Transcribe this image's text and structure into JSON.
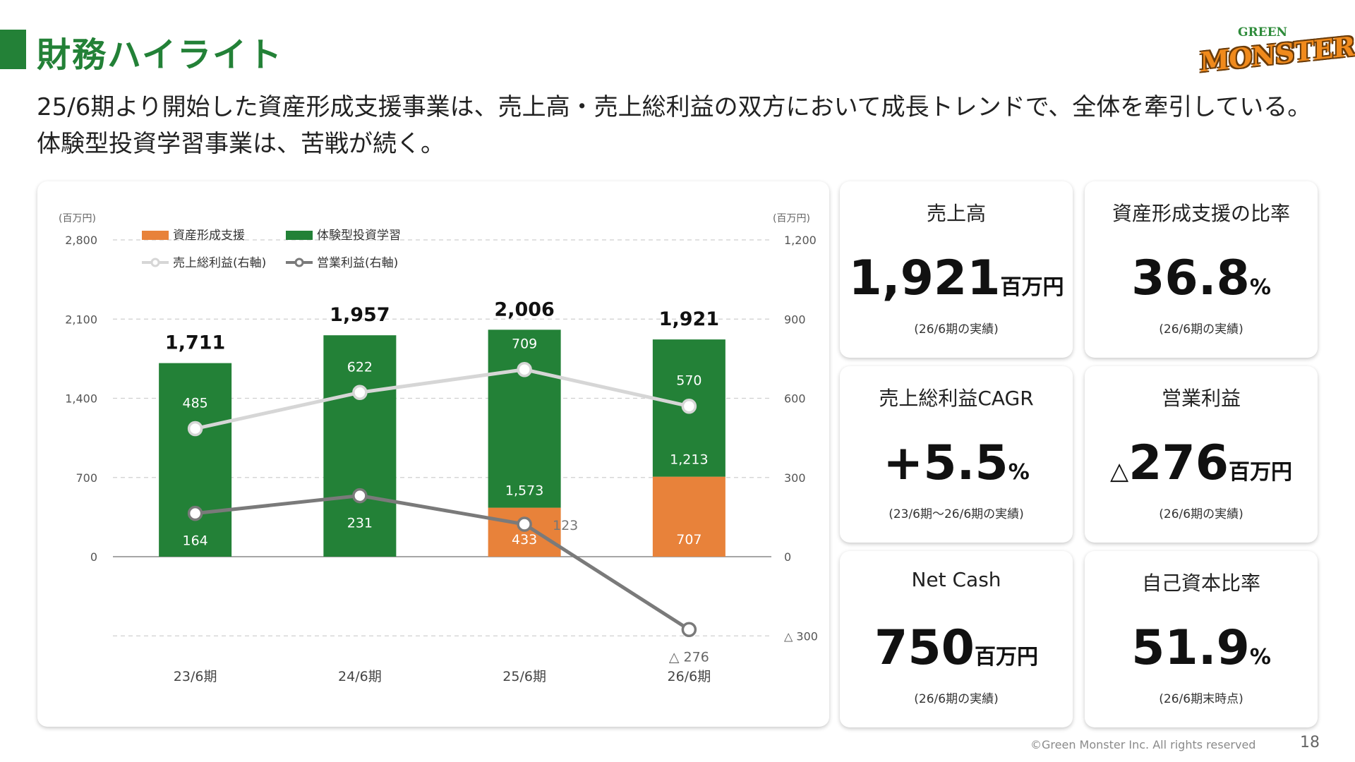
{
  "header": {
    "title": "財務ハイライト",
    "lead": "25/6期より開始した資産形成支援事業は、売上高・売上総利益の双方において成長トレンドで、全体を牽引している。体験型投資学習事業は、苦戦が続く。",
    "logo_small": "GREEN",
    "logo_main": "MONSTER"
  },
  "kpis": [
    {
      "label": "売上高",
      "prefix": "",
      "value": "1,921",
      "unit": "百万円",
      "note": "(26/6期の実績)"
    },
    {
      "label": "資産形成支援の比率",
      "prefix": "",
      "value": "36.8",
      "unit": "%",
      "note": "(26/6期の実績)"
    },
    {
      "label": "売上総利益CAGR",
      "prefix": "",
      "value": "+5.5",
      "unit": "%",
      "note": "(23/6期～26/6期の実績)"
    },
    {
      "label": "営業利益",
      "prefix": "△",
      "value": "276",
      "unit": "百万円",
      "note": "(26/6期の実績)"
    },
    {
      "label": "Net Cash",
      "prefix": "",
      "value": "750",
      "unit": "百万円",
      "note": "(26/6期の実績)"
    },
    {
      "label": "自己資本比率",
      "prefix": "",
      "value": "51.9",
      "unit": "%",
      "note": "(26/6期末時点)"
    }
  ],
  "chart_data": {
    "type": "bar",
    "stacked": true,
    "categories": [
      "23/6期",
      "24/6期",
      "25/6期",
      "26/6期"
    ],
    "left_axis": {
      "unit": "(百万円)",
      "ylim": [
        0,
        2800
      ],
      "ticks": [
        0,
        700,
        1400,
        2100,
        2800
      ],
      "tick_labels": [
        "0",
        "700",
        "1,400",
        "2,100",
        "2,800"
      ]
    },
    "right_axis": {
      "unit": "(百万円)",
      "ylim": [
        -300,
        1200
      ],
      "ticks": [
        -300,
        0,
        300,
        600,
        900,
        1200
      ],
      "tick_labels": [
        "△ 300",
        "0",
        "300",
        "600",
        "900",
        "1,200"
      ]
    },
    "grid": true,
    "legend_placement": "top-left",
    "series": [
      {
        "name": "資産形成支援",
        "kind": "bar",
        "axis": "left",
        "color": "#E8823A",
        "values": [
          0,
          0,
          433,
          707
        ],
        "labels": [
          "",
          "",
          "433",
          "707"
        ]
      },
      {
        "name": "体験型投資学習",
        "kind": "bar",
        "axis": "left",
        "color": "#238137",
        "values": [
          1711,
          1957,
          1573,
          1213
        ],
        "labels": [
          "",
          "",
          "1,573",
          "1,213"
        ]
      },
      {
        "name": "売上総利益(右軸)",
        "kind": "line",
        "axis": "right",
        "color": "#D6D6D6",
        "values": [
          485,
          622,
          709,
          570
        ],
        "labels": [
          "485",
          "622",
          "709",
          "570"
        ]
      },
      {
        "name": "営業利益(右軸)",
        "kind": "line",
        "axis": "right",
        "color": "#7A7A7A",
        "values": [
          164,
          231,
          123,
          -276
        ],
        "labels": [
          "164",
          "231",
          "123",
          "△ 276"
        ]
      }
    ],
    "totals": [
      1711,
      1957,
      2006,
      1921
    ],
    "total_labels": [
      "1,711",
      "1,957",
      "2,006",
      "1,921"
    ]
  },
  "colors": {
    "accent": "#238137",
    "orange": "#E8823A",
    "gross_line": "#D6D6D6",
    "op_line": "#7A7A7A"
  },
  "footer": {
    "copyright": "©Green Monster Inc. All rights reserved",
    "page": "18"
  }
}
